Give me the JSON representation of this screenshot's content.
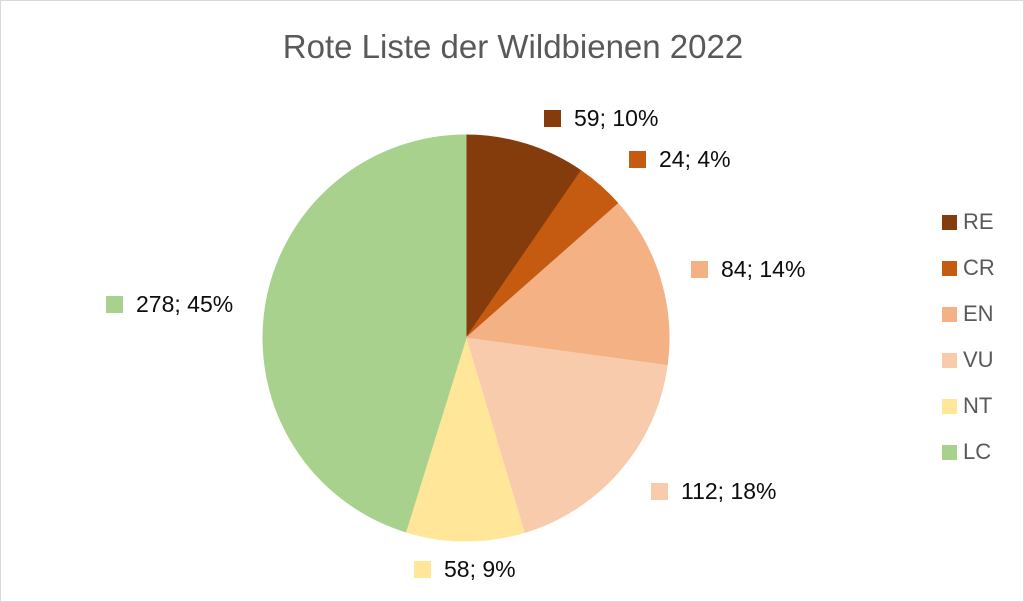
{
  "title": "Rote Liste der Wildbienen 2022",
  "chart_data": {
    "type": "pie",
    "title": "Rote Liste der Wildbienen 2022",
    "start_angle_deg": 0,
    "direction": "clockwise",
    "legend_position": "right",
    "total": 615,
    "label_format": "value; percent",
    "slices": [
      {
        "name": "RE",
        "value": 59,
        "pct": "10%",
        "label": "59; 10%",
        "color": "#843C0C"
      },
      {
        "name": "CR",
        "value": 24,
        "pct": "4%",
        "label": "24; 4%",
        "color": "#C55A11"
      },
      {
        "name": "EN",
        "value": 84,
        "pct": "14%",
        "label": "84; 14%",
        "color": "#F4B183"
      },
      {
        "name": "VU",
        "value": 112,
        "pct": "18%",
        "label": "112; 18%",
        "color": "#F8CBAD"
      },
      {
        "name": "NT",
        "value": 58,
        "pct": "9%",
        "label": "58; 9%",
        "color": "#FFE699"
      },
      {
        "name": "LC",
        "value": 278,
        "pct": "45%",
        "label": "278; 45%",
        "color": "#A9D18E"
      }
    ]
  },
  "colors": {
    "title_text": "#595959",
    "legend_text": "#595959",
    "label_text": "#0D0D0D",
    "border": "#D9D9D9",
    "background": "#FFFFFF"
  }
}
